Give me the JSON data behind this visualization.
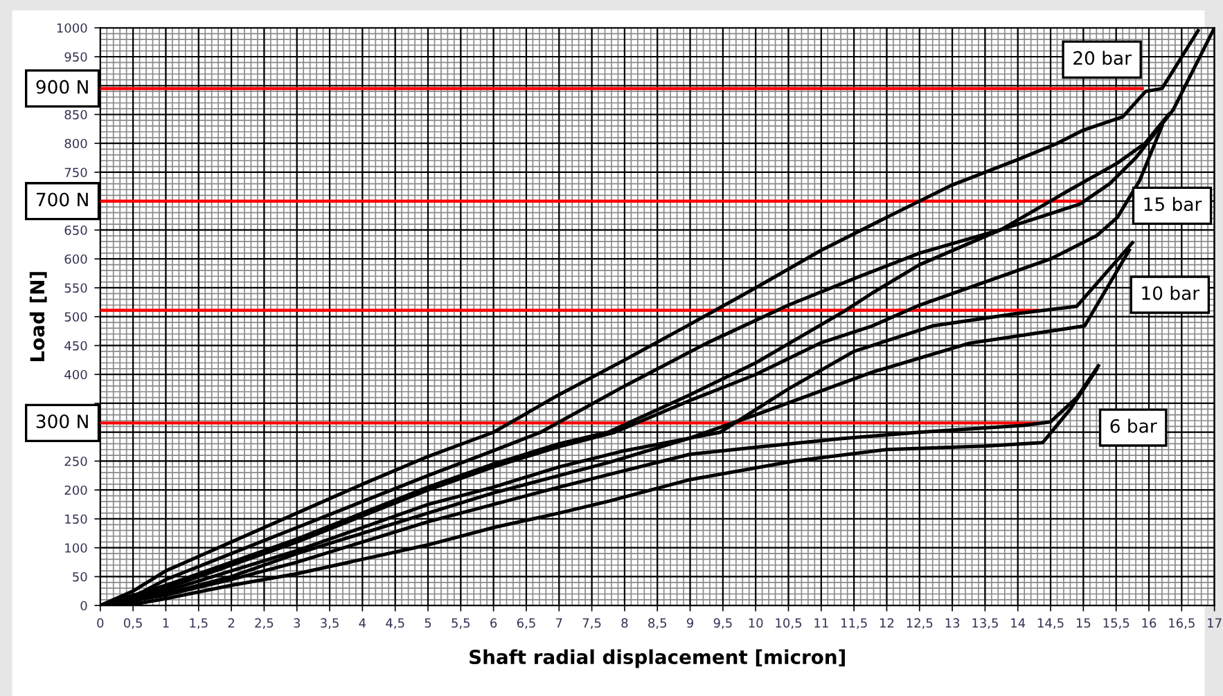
{
  "chart_data": {
    "type": "line",
    "xlabel": "Shaft radial displacement [micron]",
    "ylabel": "Load [N]",
    "xlim": [
      0,
      17
    ],
    "ylim": [
      0,
      1000
    ],
    "xticks": [
      0,
      {
        "value": 0.5,
        "label": "0,5"
      },
      1,
      {
        "value": 1.5,
        "label": "1,5"
      },
      2,
      {
        "value": 2.5,
        "label": "2,5"
      },
      3,
      {
        "value": 3.5,
        "label": "3,5"
      },
      4,
      {
        "value": 4.5,
        "label": "4,5"
      },
      5,
      {
        "value": 5.5,
        "label": "5,5"
      },
      6,
      {
        "value": 6.5,
        "label": "6,5"
      },
      7,
      {
        "value": 7.5,
        "label": "7,5"
      },
      8,
      {
        "value": 8.5,
        "label": "8,5"
      },
      9,
      {
        "value": 9.5,
        "label": "9,5"
      },
      10,
      {
        "value": 10.5,
        "label": "10,5"
      },
      11,
      {
        "value": 11.5,
        "label": "11,5"
      },
      12,
      {
        "value": 12.5,
        "label": "12,5"
      },
      13,
      {
        "value": 13.5,
        "label": "13,5"
      },
      14,
      {
        "value": 14.5,
        "label": "14,5"
      },
      15,
      {
        "value": 15.5,
        "label": "15,5"
      },
      16,
      {
        "value": 16.5,
        "label": "16,5"
      },
      17
    ],
    "yticks": [
      0,
      50,
      100,
      150,
      200,
      250,
      {
        "value": 300,
        "label": null
      },
      {
        "value": 350,
        "label": null
      },
      400,
      450,
      500,
      550,
      600,
      650,
      {
        "value": 700,
        "label": null
      },
      750,
      800,
      850,
      {
        "value": 900,
        "label": null
      },
      950,
      1000
    ],
    "grid": true,
    "marker": "none",
    "line_style": "solid",
    "series": [
      {
        "color": "#ff0000",
        "x": [
          0,
          15.9
        ],
        "values": [
          895,
          895
        ]
      },
      {
        "color": "#ff0000",
        "x": [
          0,
          14.95
        ],
        "values": [
          700,
          700
        ]
      },
      {
        "color": "#ff0000",
        "x": [
          0,
          14.3
        ],
        "values": [
          511,
          511
        ]
      },
      {
        "color": "#ff0000",
        "x": [
          0,
          14.3
        ],
        "values": [
          316,
          316
        ]
      },
      {
        "color": "#000000",
        "x": [
          0,
          0.5,
          1,
          1.5,
          2,
          3,
          4,
          5,
          6,
          7,
          8,
          9,
          10,
          11,
          12,
          13,
          14,
          14.6,
          15,
          15.6,
          15.95,
          16.2,
          16.75
        ],
        "values": [
          0,
          25,
          60,
          85,
          110,
          160,
          210,
          258,
          300,
          365,
          425,
          487,
          550,
          615,
          672,
          728,
          772,
          800,
          823,
          846,
          890,
          895,
          995
        ]
      },
      {
        "color": "#000000",
        "x": [
          0,
          0.5,
          1,
          2,
          3,
          4,
          5,
          6,
          6.72,
          8,
          9.25,
          10.5,
          11.57,
          12.5,
          13.75,
          14.95,
          15.4,
          15.8,
          16.37,
          17
        ],
        "values": [
          0,
          15,
          45,
          90,
          135,
          180,
          225,
          268,
          300,
          380,
          454,
          520,
          569,
          610,
          651,
          695,
          730,
          775,
          858,
          1000
        ]
      },
      {
        "color": "#000000",
        "x": [
          0,
          1,
          2,
          3,
          4,
          5,
          6,
          7,
          7.75,
          9,
          10,
          11.36,
          11.78,
          12.5,
          13.75,
          14.8,
          15.52,
          15.94,
          16.3
        ],
        "values": [
          0,
          35,
          75,
          115,
          160,
          205,
          245,
          280,
          300,
          365,
          420,
          510,
          541,
          590,
          651,
          720,
          766,
          800,
          850
        ]
      },
      {
        "color": "#000000",
        "x": [
          0.1,
          1,
          2,
          3,
          4,
          5,
          6,
          7,
          7.85,
          9,
          10,
          11,
          11.78,
          12.5,
          13.5,
          14.5,
          15.2,
          15.52,
          15.86,
          16.2
        ],
        "values": [
          0,
          30,
          70,
          110,
          155,
          200,
          240,
          275,
          300,
          355,
          400,
          455,
          484,
          520,
          560,
          600,
          640,
          672,
          736,
          830
        ]
      },
      {
        "color": "#000000",
        "x": [
          0,
          1,
          2,
          3,
          4,
          5,
          6,
          7,
          8,
          9.46,
          10.5,
          11.5,
          12.7,
          13.96,
          14.9,
          15.75
        ],
        "values": [
          0,
          25,
          60,
          95,
          135,
          175,
          205,
          240,
          268,
          300,
          375,
          440,
          484,
          505,
          518,
          628
        ]
      },
      {
        "color": "#000000",
        "x": [
          0.2,
          1,
          2,
          3,
          4,
          5,
          6,
          7,
          7.77,
          9,
          10,
          11.78,
          13.26,
          15.02,
          15.7
        ],
        "values": [
          0,
          20,
          50,
          90,
          125,
          160,
          195,
          225,
          248,
          290,
          330,
          404,
          454,
          484,
          615
        ]
      },
      {
        "color": "#000000",
        "x": [
          0,
          1,
          2,
          3,
          4,
          5,
          6,
          7,
          7.77,
          9,
          10,
          11.3,
          12.5,
          14.1,
          14.5,
          14.9,
          15.23
        ],
        "values": [
          0,
          18,
          45,
          75,
          110,
          145,
          175,
          205,
          227,
          262,
          274,
          289,
          300,
          312,
          318,
          360,
          415
        ]
      },
      {
        "color": "#000000",
        "x": [
          0.1,
          0.5,
          1,
          2,
          3,
          4,
          5,
          6,
          7,
          7.77,
          9,
          10.58,
          12,
          13.5,
          14.38,
          14.8,
          15.2
        ],
        "values": [
          0,
          2,
          12,
          35,
          55,
          80,
          105,
          135,
          160,
          181,
          218,
          250,
          270,
          276,
          282,
          340,
          408
        ]
      }
    ],
    "annotations": [
      "900 N",
      "700 N",
      "300 N",
      "20 bar",
      "15 bar",
      "10 bar",
      "6 bar"
    ]
  }
}
